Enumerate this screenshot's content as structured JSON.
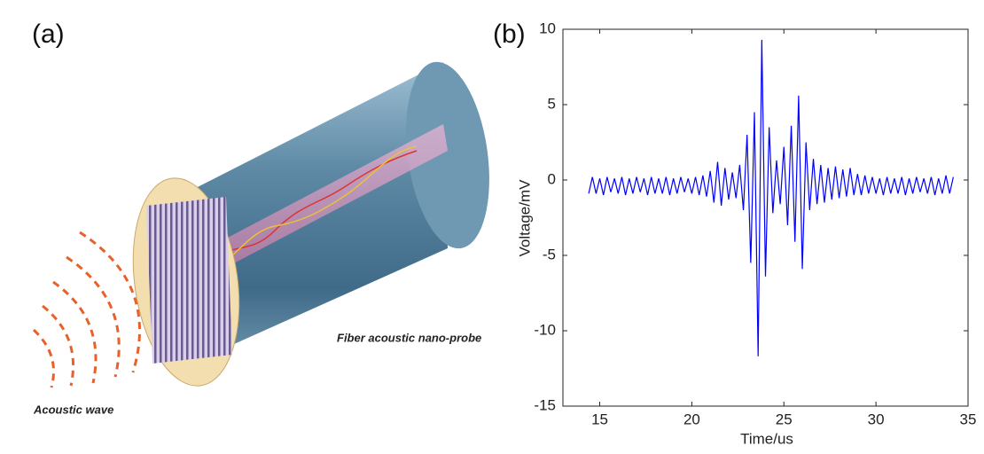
{
  "panel_a": {
    "label": "(a)",
    "probe_label": "Fiber acoustic nano-probe",
    "wave_label": "Acoustic wave"
  },
  "chart_data": {
    "type": "line",
    "panel_label": "(b)",
    "x_label": "Time/us",
    "y_label": "Voltage/mV",
    "color": "#0000ff",
    "xlim": [
      13,
      35
    ],
    "ylim": [
      -15,
      10
    ],
    "xticks": [
      15,
      20,
      25,
      30,
      35
    ],
    "yticks": [
      -15,
      -10,
      -5,
      0,
      5,
      10
    ],
    "x": [
      14.4,
      14.6,
      14.8,
      15.0,
      15.2,
      15.4,
      15.6,
      15.8,
      16.0,
      16.2,
      16.4,
      16.6,
      16.8,
      17.0,
      17.2,
      17.4,
      17.6,
      17.8,
      18.0,
      18.2,
      18.4,
      18.6,
      18.8,
      19.0,
      19.2,
      19.4,
      19.6,
      19.8,
      20.0,
      20.2,
      20.4,
      20.6,
      20.8,
      21.0,
      21.2,
      21.4,
      21.6,
      21.8,
      22.0,
      22.2,
      22.4,
      22.6,
      22.8,
      23.0,
      23.2,
      23.4,
      23.6,
      23.8,
      24.0,
      24.2,
      24.4,
      24.6,
      24.8,
      25.0,
      25.2,
      25.4,
      25.6,
      25.8,
      26.0,
      26.2,
      26.4,
      26.6,
      26.8,
      27.0,
      27.2,
      27.4,
      27.6,
      27.8,
      28.0,
      28.2,
      28.4,
      28.6,
      28.8,
      29.0,
      29.2,
      29.4,
      29.6,
      29.8,
      30.0,
      30.2,
      30.4,
      30.6,
      30.8,
      31.0,
      31.2,
      31.4,
      31.6,
      31.8,
      32.0,
      32.2,
      32.4,
      32.6,
      32.8,
      33.0,
      33.2,
      33.4,
      33.6,
      33.8,
      34.0,
      34.2
    ],
    "values": [
      -0.9,
      0.2,
      -0.9,
      0.1,
      -1.0,
      0.2,
      -0.8,
      0.1,
      -0.9,
      0.2,
      -1.0,
      0.1,
      -0.9,
      0.2,
      -0.8,
      0.1,
      -1.0,
      0.2,
      -0.9,
      0.1,
      -0.9,
      0.2,
      -1.0,
      0.1,
      -0.9,
      0.2,
      -0.8,
      0.1,
      -0.9,
      0.2,
      -1.0,
      0.3,
      -1.1,
      0.6,
      -1.5,
      1.2,
      -1.7,
      0.8,
      -1.3,
      0.5,
      -1.2,
      1.0,
      -2.0,
      3.0,
      -5.5,
      4.5,
      -11.7,
      9.3,
      -6.4,
      3.5,
      -2.2,
      1.3,
      -1.6,
      2.2,
      -3.0,
      3.6,
      -4.1,
      5.6,
      -5.9,
      2.5,
      -2.0,
      1.4,
      -1.6,
      1.0,
      -1.5,
      0.8,
      -1.3,
      0.9,
      -1.2,
      0.7,
      -1.1,
      0.8,
      -1.0,
      0.4,
      -1.0,
      0.3,
      -0.9,
      0.2,
      -0.9,
      0.1,
      -1.0,
      0.2,
      -0.9,
      0.1,
      -0.9,
      0.2,
      -1.0,
      0.1,
      -0.9,
      0.2,
      -0.8,
      0.1,
      -0.9,
      0.2,
      -1.0,
      0.1,
      -0.9,
      0.3,
      -0.9,
      0.2
    ]
  }
}
